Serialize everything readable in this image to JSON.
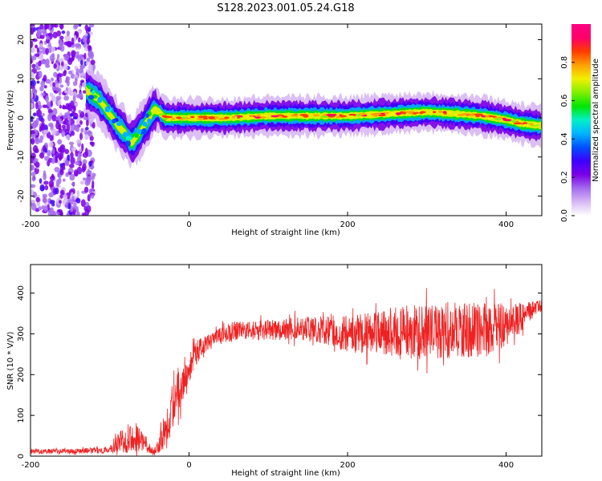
{
  "title": "S128.2023.001.05.24.G18",
  "chart_data": [
    {
      "type": "heatmap",
      "title": "S128.2023.001.05.24.G18",
      "xlabel": "Height of straight line (km)",
      "ylabel": "Frequency (Hz)",
      "xlim": [
        -200,
        445
      ],
      "ylim": [
        -25,
        24
      ],
      "xticks": [
        -200,
        0,
        200,
        400
      ],
      "yticks": [
        20,
        10,
        0,
        -10,
        -20
      ],
      "colorbar": {
        "label": "Normalized spectral amplitude",
        "range": [
          0,
          1
        ],
        "ticks": [
          "0.0",
          "0.2",
          "0.4",
          "0.6",
          "0.8"
        ],
        "colors": [
          "#ffffff",
          "#d8b8f4",
          "#a46cee",
          "#7a00e6",
          "#3c00ff",
          "#0050ff",
          "#00b4ff",
          "#00f0c8",
          "#00e600",
          "#80f000",
          "#f0f000",
          "#ffa000",
          "#ff3c00",
          "#ff006a",
          "#ff0080"
        ]
      },
      "ridge": {
        "x": [
          -130,
          -115,
          -100,
          -90,
          -80,
          -75,
          -70,
          -60,
          -50,
          -45,
          -40,
          -30,
          0,
          50,
          100,
          150,
          200,
          250,
          300,
          340,
          370,
          400,
          420,
          445
        ],
        "freq": [
          7,
          5,
          1,
          -2,
          -4,
          -6,
          -6,
          -3,
          0,
          2,
          2,
          0,
          0,
          0,
          0.5,
          0.5,
          0.5,
          1,
          1.5,
          1,
          0.5,
          -0.5,
          -1.5,
          -2
        ]
      },
      "grid": false
    },
    {
      "type": "line",
      "xlabel": "Height of straight line (km)",
      "ylabel": "SNR (10 * V/V)",
      "xlim": [
        -200,
        445
      ],
      "ylim": [
        0,
        470
      ],
      "xticks": [
        -200,
        0,
        200,
        400
      ],
      "yticks": [
        0,
        100,
        200,
        300,
        400
      ],
      "color": "#ee2222",
      "envelope": {
        "x": [
          -200,
          -150,
          -100,
          -85,
          -75,
          -65,
          -55,
          -45,
          -40,
          -35,
          -25,
          -15,
          -5,
          5,
          15,
          25,
          35,
          45,
          55,
          75,
          100,
          150,
          200,
          250,
          300,
          340,
          380,
          410,
          430,
          445
        ],
        "mid": [
          12,
          12,
          15,
          40,
          50,
          45,
          30,
          10,
          20,
          50,
          95,
          160,
          195,
          245,
          265,
          280,
          290,
          300,
          305,
          308,
          310,
          315,
          300,
          305,
          305,
          310,
          310,
          330,
          355,
          370
        ],
        "amp": [
          6,
          6,
          8,
          30,
          45,
          35,
          15,
          8,
          18,
          40,
          55,
          60,
          50,
          35,
          25,
          20,
          20,
          25,
          25,
          22,
          25,
          30,
          45,
          60,
          70,
          70,
          65,
          45,
          25,
          15
        ]
      },
      "grid": false
    }
  ]
}
